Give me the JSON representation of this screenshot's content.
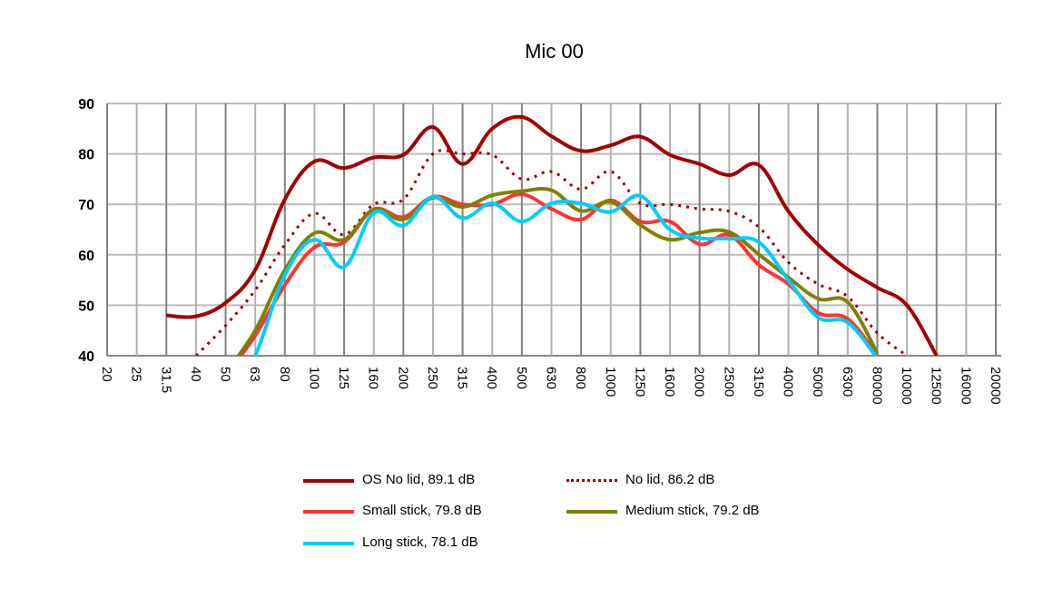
{
  "chart_data": {
    "type": "line",
    "title": "Mic 00",
    "xlabel": "",
    "ylabel": "",
    "ylim": [
      40,
      90
    ],
    "yticks": [
      40,
      50,
      60,
      70,
      80,
      90
    ],
    "grid": true,
    "legend_position": "bottom",
    "categories": [
      "20",
      "25",
      "31.5",
      "40",
      "50",
      "63",
      "80",
      "100",
      "125",
      "160",
      "200",
      "250",
      "315",
      "400",
      "500",
      "630",
      "800",
      "1000",
      "1250",
      "1600",
      "2000",
      "2500",
      "3150",
      "4000",
      "5000",
      "6300",
      "80000",
      "10000",
      "12500",
      "16000",
      "20000"
    ],
    "series": [
      {
        "name": "OS No lid, 89.1 dB",
        "color": "#a00000",
        "style": "solid",
        "values": [
          null,
          null,
          48,
          47.8,
          50.5,
          57,
          71,
          78.5,
          77.2,
          79.3,
          79.8,
          85.3,
          78,
          85,
          87.3,
          83.5,
          80.6,
          81.7,
          83.4,
          79.8,
          78,
          75.8,
          77.8,
          68.6,
          62,
          57.1,
          53.5,
          50,
          40,
          null,
          null
        ]
      },
      {
        "name": "No lid, 86.2 dB",
        "color": "#a00000",
        "style": "dotted",
        "values": [
          null,
          null,
          null,
          40,
          46,
          53,
          62,
          68.2,
          64,
          70,
          71,
          80,
          80,
          79.8,
          75,
          76.5,
          73,
          76.5,
          70.2,
          70,
          69.1,
          68.6,
          65.5,
          58.5,
          54.2,
          51.7,
          44.5,
          40,
          null,
          null,
          null
        ]
      },
      {
        "name": "Small stick, 79.8 dB",
        "color": "#ff3333",
        "style": "solid",
        "values": [
          null,
          null,
          null,
          null,
          36,
          44,
          54,
          61.5,
          62.5,
          69,
          67.5,
          71.5,
          70,
          70,
          72,
          69.1,
          67,
          70.8,
          66.6,
          66.6,
          62.1,
          63.9,
          58,
          54.2,
          48.5,
          47.3,
          40,
          null,
          null,
          null,
          null
        ]
      },
      {
        "name": "Medium stick, 79.2 dB",
        "color": "#808000",
        "style": "solid",
        "values": [
          null,
          null,
          null,
          null,
          36.5,
          45,
          57,
          64.3,
          63,
          69,
          67,
          71.3,
          69.5,
          71.8,
          72.6,
          72.8,
          68.7,
          70.5,
          65.9,
          63,
          64.4,
          64.5,
          60.1,
          55.5,
          51.3,
          50.6,
          40.5,
          null,
          null,
          null,
          null
        ]
      },
      {
        "name": "Long stick, 78.1 dB",
        "color": "#00ccff",
        "style": "solid",
        "values": [
          null,
          null,
          null,
          null,
          30,
          40,
          56,
          63,
          57.6,
          68.3,
          65.8,
          71.5,
          67.3,
          70.2,
          66.6,
          70.2,
          70.2,
          68.5,
          71.7,
          65,
          63.3,
          63.2,
          62.5,
          55,
          47.6,
          46.6,
          39.5,
          null,
          null,
          null,
          null
        ]
      }
    ]
  }
}
